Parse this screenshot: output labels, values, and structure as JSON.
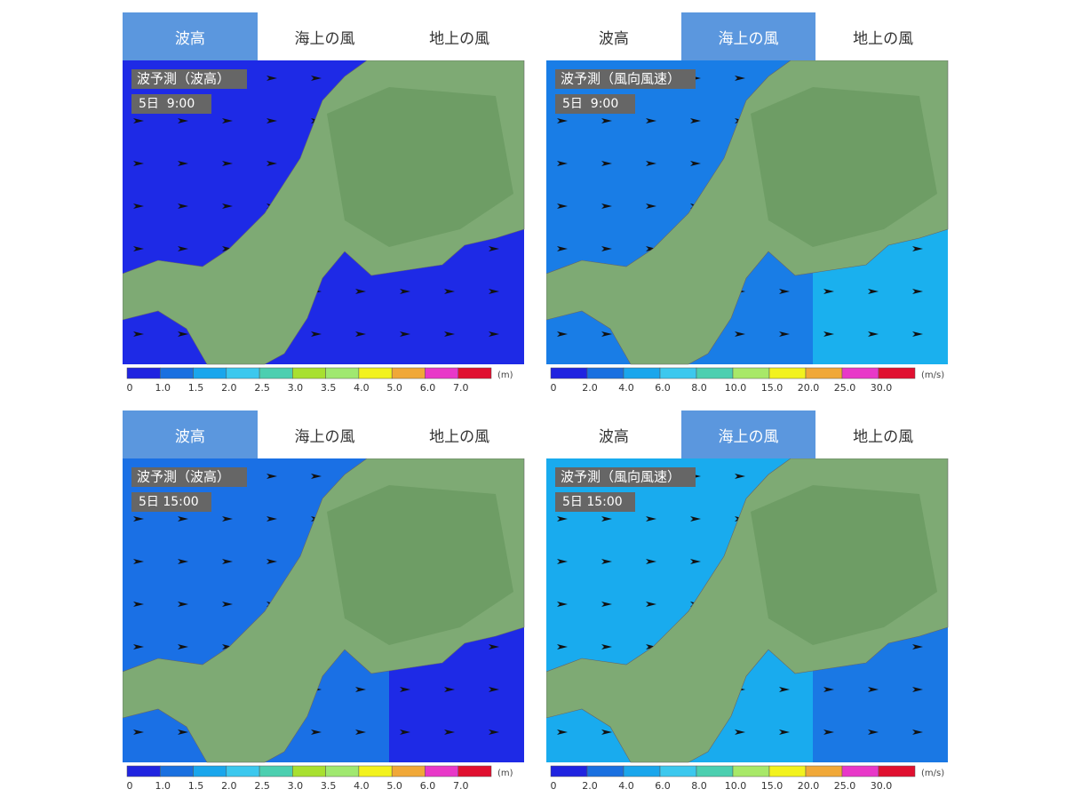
{
  "panels": [
    {
      "tabs": [
        "波高",
        "海上の風",
        "地上の風"
      ],
      "active_tab": 0,
      "title": "波予測（波高）",
      "time": "5日  9:00",
      "legend": {
        "colors": [
          "#2024e0",
          "#1a70e0",
          "#1aa6ec",
          "#3cc8ee",
          "#4ccfb0",
          "#a8e030",
          "#a0e870",
          "#f2f21e",
          "#f0a838",
          "#e838c8",
          "#e01030"
        ],
        "labels": [
          "0",
          "1.0",
          "1.5",
          "2.0",
          "2.5",
          "3.0",
          "3.5",
          "4.0",
          "5.0",
          "6.0",
          "7.0"
        ],
        "unit": "(m)"
      }
    },
    {
      "tabs": [
        "波高",
        "海上の風",
        "地上の風"
      ],
      "active_tab": 1,
      "title": "波予測（風向風速）",
      "time": "5日  9:00",
      "legend": {
        "colors": [
          "#2024e0",
          "#1a70e0",
          "#1aa6ec",
          "#3cc8ee",
          "#4ccfb0",
          "#a8e868",
          "#f2f21e",
          "#f0a838",
          "#e838c8",
          "#e01030"
        ],
        "labels": [
          "0",
          "2.0",
          "4.0",
          "6.0",
          "8.0",
          "10.0",
          "15.0",
          "20.0",
          "25.0",
          "30.0"
        ],
        "unit": "(m/s)"
      }
    },
    {
      "tabs": [
        "波高",
        "海上の風",
        "地上の風"
      ],
      "active_tab": 0,
      "title": "波予測（波高）",
      "time": "5日 15:00",
      "legend": {
        "colors": [
          "#2024e0",
          "#1a70e0",
          "#1aa6ec",
          "#3cc8ee",
          "#4ccfb0",
          "#a8e030",
          "#a0e870",
          "#f2f21e",
          "#f0a838",
          "#e838c8",
          "#e01030"
        ],
        "labels": [
          "0",
          "1.0",
          "1.5",
          "2.0",
          "2.5",
          "3.0",
          "3.5",
          "4.0",
          "5.0",
          "6.0",
          "7.0"
        ],
        "unit": "(m)"
      }
    },
    {
      "tabs": [
        "波高",
        "海上の風",
        "地上の風"
      ],
      "active_tab": 1,
      "title": "波予測（風向風速）",
      "time": "5日 15:00",
      "legend": {
        "colors": [
          "#2024e0",
          "#1a70e0",
          "#1aa6ec",
          "#3cc8ee",
          "#4ccfb0",
          "#a8e868",
          "#f2f21e",
          "#f0a838",
          "#e838c8",
          "#e01030"
        ],
        "labels": [
          "0",
          "2.0",
          "4.0",
          "6.0",
          "8.0",
          "10.0",
          "15.0",
          "20.0",
          "25.0",
          "30.0"
        ],
        "unit": "(m/s)"
      }
    }
  ]
}
